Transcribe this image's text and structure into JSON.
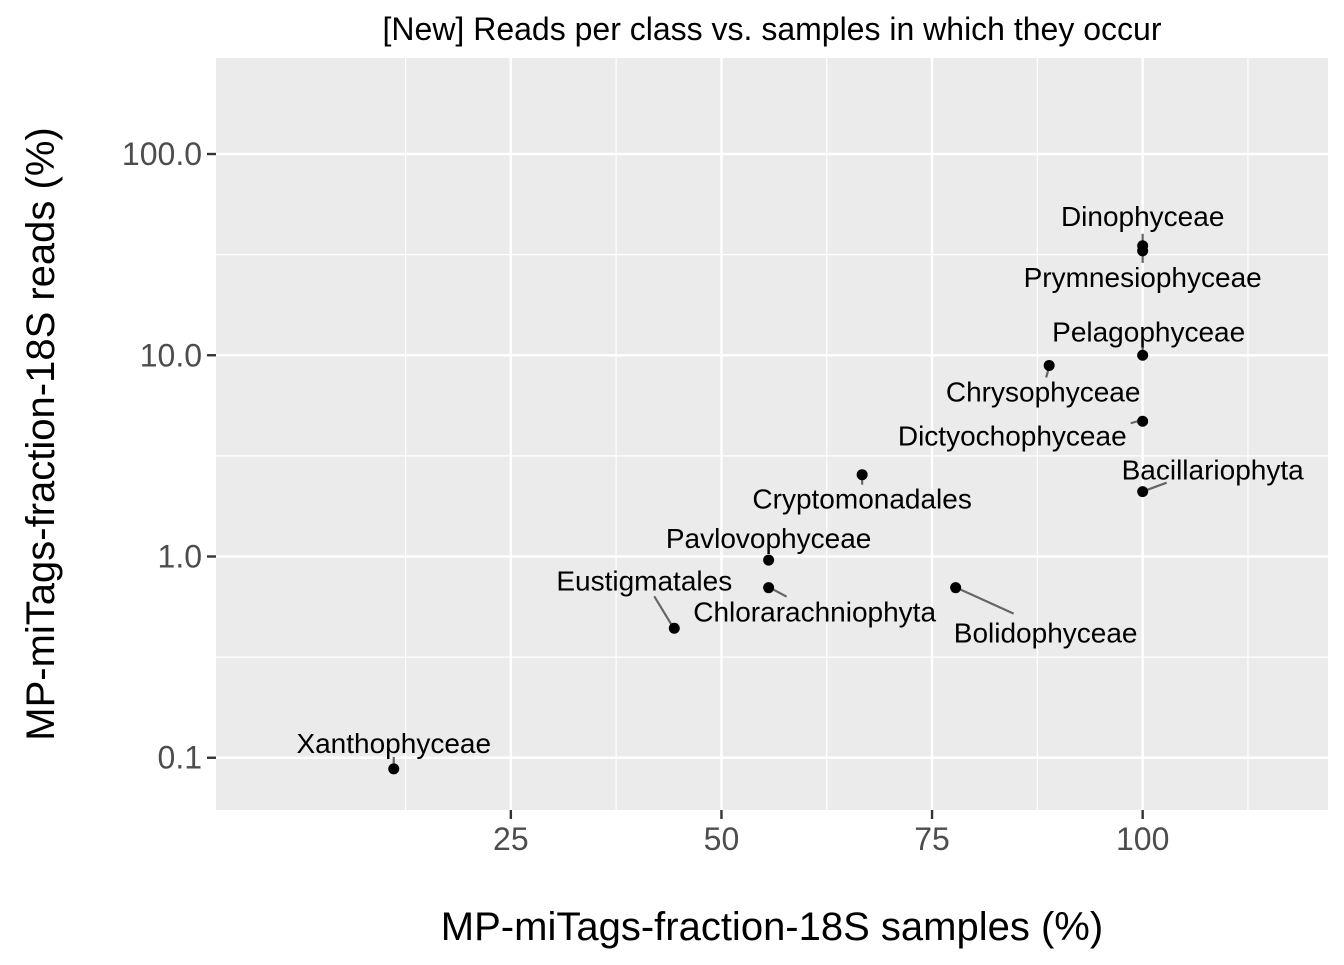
{
  "chart_data": {
    "type": "scatter",
    "title": "[New] Reads per class vs. samples in which they occur",
    "xlabel": "MP-miTags-fraction-18S samples (%)",
    "ylabel": "MP-miTags-fraction-18S reads (%)",
    "xlim": [
      -10,
      122
    ],
    "ylim": [
      0.055,
      300
    ],
    "y_scale": "log10",
    "x_ticks": [
      25,
      50,
      75,
      100
    ],
    "x_tick_labels": [
      "25",
      "50",
      "75",
      "100"
    ],
    "y_ticks": [
      0.1,
      1,
      10,
      100
    ],
    "y_tick_labels": [
      "0.1",
      "1.0",
      "10.0",
      "100.0"
    ],
    "grid": true,
    "legend": "none",
    "points": [
      {
        "label": "Dinophyceae",
        "x": 100,
        "y": 35
      },
      {
        "label": "Prymnesiophyceae",
        "x": 100,
        "y": 33
      },
      {
        "label": "Pelagophyceae",
        "x": 100,
        "y": 10
      },
      {
        "label": "Chrysophyceae",
        "x": 88.9,
        "y": 8.9
      },
      {
        "label": "Dictyochophyceae",
        "x": 100,
        "y": 4.7
      },
      {
        "label": "Cryptomonadales",
        "x": 66.7,
        "y": 2.55
      },
      {
        "label": "Bacillariophyta",
        "x": 100,
        "y": 2.1
      },
      {
        "label": "Pavlovophyceae",
        "x": 55.6,
        "y": 0.96
      },
      {
        "label": "Chlorarachniophyta",
        "x": 55.6,
        "y": 0.7
      },
      {
        "label": "Bolidophyceae",
        "x": 77.8,
        "y": 0.7
      },
      {
        "label": "Eustigmatales",
        "x": 44.4,
        "y": 0.44
      },
      {
        "label": "Xanthophyceae",
        "x": 11.1,
        "y": 0.088
      }
    ]
  }
}
